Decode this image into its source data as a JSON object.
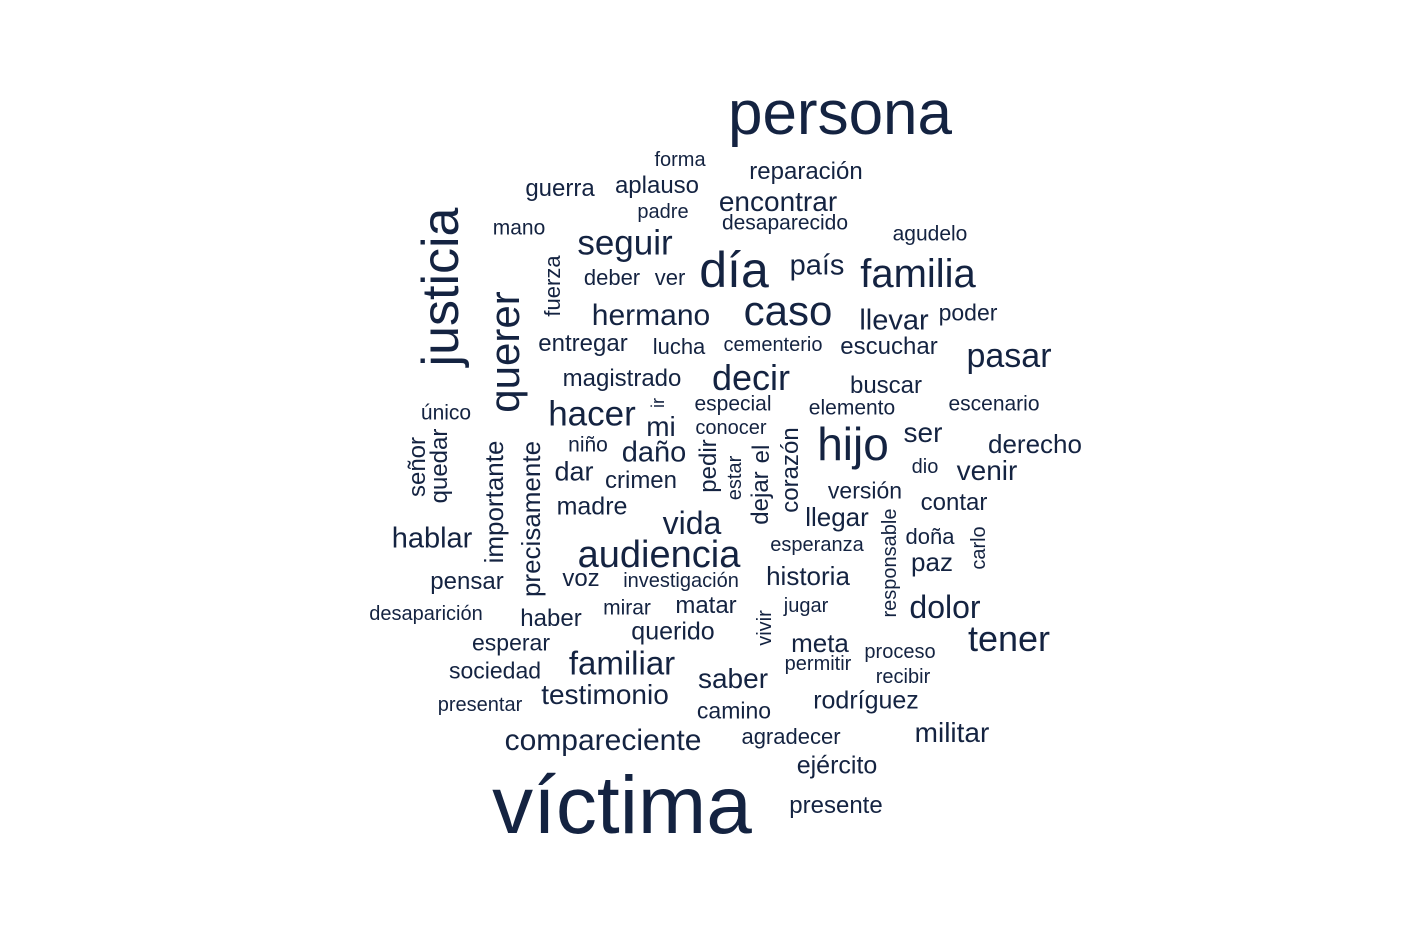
{
  "color": "#142341",
  "words": [
    "víctima",
    "persona",
    "justicia",
    "querer",
    "día",
    "familia",
    "caso",
    "hijo",
    "audiencia",
    "seguir",
    "decir",
    "hacer",
    "tener",
    "pasar",
    "familiar",
    "vida",
    "compareciente",
    "dolor",
    "hermano",
    "llevar",
    "país",
    "encontrar",
    "daño",
    "hablar",
    "testimonio",
    "saber",
    "mi",
    "militar",
    "derecho",
    "venir",
    "ser",
    "historia",
    "reparación",
    "aplauso",
    "guerra",
    "magistrado",
    "entregar",
    "escuchar",
    "buscar",
    "llegar",
    "madre",
    "crimen",
    "dar",
    "querido",
    "meta",
    "rodríguez",
    "ejército",
    "presente",
    "contar",
    "versión",
    "paz",
    "importante",
    "precisamente",
    "señor",
    "quedar",
    "pensar",
    "haber",
    "voz",
    "matar",
    "esperar",
    "sociedad",
    "agradecer",
    "camino",
    "presentar",
    "desaparición",
    "investigación",
    "esperanza",
    "especial",
    "elemento",
    "escenario",
    "poder",
    "cementerio",
    "lucha",
    "deber",
    "ver",
    "fuerza",
    "mano",
    "padre",
    "forma",
    "desaparecido",
    "agudelo",
    "niño",
    "conocer",
    "pedir",
    "estar",
    "dejar",
    "el",
    "corazón",
    "responsable",
    "doña",
    "carlo",
    "dio",
    "jugar",
    "mirar",
    "vivir",
    "permitir",
    "proceso",
    "recibir",
    "único",
    "ir"
  ]
}
